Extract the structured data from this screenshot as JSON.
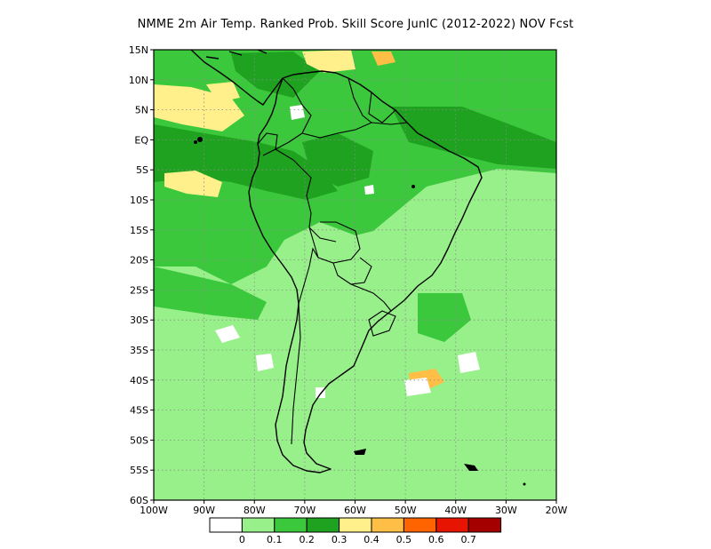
{
  "title": "NMME  2m Air Temp. Ranked Prob. Skill Score JunIC (2012-2022) NOV Fcst",
  "map": {
    "lat_labels": [
      "15N",
      "10N",
      "5N",
      "EQ",
      "5S",
      "10S",
      "15S",
      "20S",
      "25S",
      "30S",
      "35S",
      "40S",
      "45S",
      "50S",
      "55S",
      "60S"
    ],
    "lon_labels": [
      "100W",
      "90W",
      "80W",
      "70W",
      "60W",
      "50W",
      "40W",
      "30W",
      "20W"
    ],
    "grid": "dotted"
  },
  "colorbar": {
    "colors": [
      "#ffffff",
      "#98f08a",
      "#3cc83c",
      "#1fa21f",
      "#fff08c",
      "#ffbe46",
      "#ff6400",
      "#e61400",
      "#a50000"
    ],
    "labels": [
      "0",
      "0.1",
      "0.2",
      "0.3",
      "0.4",
      "0.5",
      "0.6",
      "0.7"
    ]
  }
}
